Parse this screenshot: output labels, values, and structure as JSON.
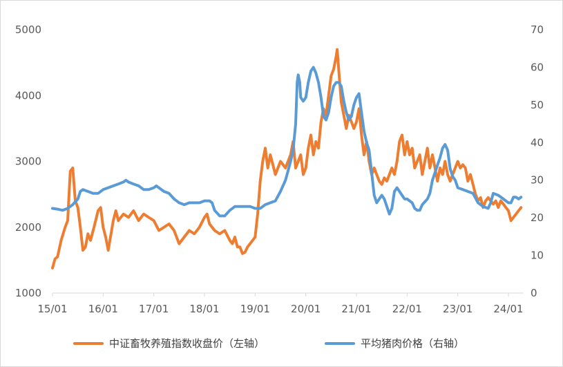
{
  "chart_data": {
    "type": "line",
    "title": "",
    "x_ticks": [
      "15/01",
      "16/01",
      "17/01",
      "18/01",
      "19/01",
      "20/01",
      "21/01",
      "22/01",
      "23/01",
      "24/01"
    ],
    "x_range": [
      2015.0,
      2024.3
    ],
    "y_left": {
      "ticks": [
        "1000",
        "2000",
        "3000",
        "4000",
        "5000"
      ],
      "range": [
        1000,
        5000
      ]
    },
    "y_right": {
      "ticks": [
        "0",
        "10",
        "20",
        "30",
        "40",
        "50",
        "60",
        "70"
      ],
      "range": [
        0,
        70
      ]
    },
    "grid": false,
    "legend_position": "bottom",
    "series": [
      {
        "name": "中证畜牧养殖指数收盘价（左轴）",
        "axis": "left",
        "color": "#ED7D31",
        "points": [
          [
            2015.0,
            1380
          ],
          [
            2015.05,
            1520
          ],
          [
            2015.1,
            1550
          ],
          [
            2015.17,
            1800
          ],
          [
            2015.25,
            2000
          ],
          [
            2015.3,
            2100
          ],
          [
            2015.35,
            2850
          ],
          [
            2015.4,
            2900
          ],
          [
            2015.45,
            2400
          ],
          [
            2015.5,
            2300
          ],
          [
            2015.55,
            2000
          ],
          [
            2015.6,
            1650
          ],
          [
            2015.65,
            1700
          ],
          [
            2015.7,
            1900
          ],
          [
            2015.75,
            1800
          ],
          [
            2015.82,
            2000
          ],
          [
            2015.9,
            2250
          ],
          [
            2015.95,
            2300
          ],
          [
            2016.0,
            2000
          ],
          [
            2016.05,
            1850
          ],
          [
            2016.1,
            1650
          ],
          [
            2016.2,
            2100
          ],
          [
            2016.25,
            2250
          ],
          [
            2016.3,
            2100
          ],
          [
            2016.4,
            2200
          ],
          [
            2016.5,
            2150
          ],
          [
            2016.6,
            2250
          ],
          [
            2016.7,
            2100
          ],
          [
            2016.8,
            2200
          ],
          [
            2016.9,
            2150
          ],
          [
            2017.0,
            2100
          ],
          [
            2017.1,
            1950
          ],
          [
            2017.2,
            2000
          ],
          [
            2017.3,
            2050
          ],
          [
            2017.4,
            1950
          ],
          [
            2017.5,
            1750
          ],
          [
            2017.6,
            1850
          ],
          [
            2017.7,
            1950
          ],
          [
            2017.8,
            1900
          ],
          [
            2017.9,
            2000
          ],
          [
            2018.0,
            2150
          ],
          [
            2018.05,
            2200
          ],
          [
            2018.1,
            2050
          ],
          [
            2018.2,
            1950
          ],
          [
            2018.3,
            1900
          ],
          [
            2018.4,
            1950
          ],
          [
            2018.5,
            1800
          ],
          [
            2018.55,
            1750
          ],
          [
            2018.6,
            1850
          ],
          [
            2018.65,
            1700
          ],
          [
            2018.7,
            1700
          ],
          [
            2018.75,
            1600
          ],
          [
            2018.8,
            1620
          ],
          [
            2018.85,
            1700
          ],
          [
            2018.9,
            1750
          ],
          [
            2018.95,
            1800
          ],
          [
            2019.0,
            1850
          ],
          [
            2019.05,
            2200
          ],
          [
            2019.1,
            2700
          ],
          [
            2019.15,
            3000
          ],
          [
            2019.2,
            3200
          ],
          [
            2019.25,
            2900
          ],
          [
            2019.3,
            3100
          ],
          [
            2019.4,
            2800
          ],
          [
            2019.5,
            3000
          ],
          [
            2019.6,
            2900
          ],
          [
            2019.7,
            3100
          ],
          [
            2019.75,
            3300
          ],
          [
            2019.8,
            2900
          ],
          [
            2019.85,
            3000
          ],
          [
            2019.9,
            3100
          ],
          [
            2019.95,
            2800
          ],
          [
            2020.0,
            2900
          ],
          [
            2020.05,
            3200
          ],
          [
            2020.1,
            3400
          ],
          [
            2020.15,
            3100
          ],
          [
            2020.2,
            3300
          ],
          [
            2020.25,
            3200
          ],
          [
            2020.3,
            3600
          ],
          [
            2020.35,
            3800
          ],
          [
            2020.4,
            3700
          ],
          [
            2020.45,
            4000
          ],
          [
            2020.5,
            4300
          ],
          [
            2020.55,
            4400
          ],
          [
            2020.6,
            4600
          ],
          [
            2020.62,
            4700
          ],
          [
            2020.65,
            4400
          ],
          [
            2020.7,
            3900
          ],
          [
            2020.75,
            3700
          ],
          [
            2020.8,
            3500
          ],
          [
            2020.85,
            3700
          ],
          [
            2020.9,
            3600
          ],
          [
            2020.95,
            3500
          ],
          [
            2021.0,
            3600
          ],
          [
            2021.05,
            3800
          ],
          [
            2021.1,
            3400
          ],
          [
            2021.15,
            3100
          ],
          [
            2021.2,
            3300
          ],
          [
            2021.25,
            3000
          ],
          [
            2021.3,
            2800
          ],
          [
            2021.35,
            2900
          ],
          [
            2021.4,
            2800
          ],
          [
            2021.45,
            2700
          ],
          [
            2021.5,
            2650
          ],
          [
            2021.55,
            2750
          ],
          [
            2021.6,
            2700
          ],
          [
            2021.65,
            2800
          ],
          [
            2021.7,
            2900
          ],
          [
            2021.75,
            2800
          ],
          [
            2021.8,
            3000
          ],
          [
            2021.85,
            3300
          ],
          [
            2021.9,
            3400
          ],
          [
            2021.95,
            3100
          ],
          [
            2022.0,
            3300
          ],
          [
            2022.05,
            3100
          ],
          [
            2022.1,
            3200
          ],
          [
            2022.15,
            2900
          ],
          [
            2022.2,
            3000
          ],
          [
            2022.25,
            3100
          ],
          [
            2022.3,
            2800
          ],
          [
            2022.35,
            3000
          ],
          [
            2022.4,
            3200
          ],
          [
            2022.45,
            2900
          ],
          [
            2022.5,
            3100
          ],
          [
            2022.55,
            2900
          ],
          [
            2022.6,
            2700
          ],
          [
            2022.65,
            2900
          ],
          [
            2022.7,
            2800
          ],
          [
            2022.75,
            3000
          ],
          [
            2022.8,
            2800
          ],
          [
            2022.85,
            2700
          ],
          [
            2022.9,
            2800
          ],
          [
            2022.95,
            2900
          ],
          [
            2023.0,
            3000
          ],
          [
            2023.05,
            2900
          ],
          [
            2023.1,
            2950
          ],
          [
            2023.15,
            2900
          ],
          [
            2023.2,
            2700
          ],
          [
            2023.25,
            2800
          ],
          [
            2023.3,
            2650
          ],
          [
            2023.35,
            2500
          ],
          [
            2023.4,
            2400
          ],
          [
            2023.45,
            2450
          ],
          [
            2023.5,
            2300
          ],
          [
            2023.55,
            2400
          ],
          [
            2023.6,
            2450
          ],
          [
            2023.65,
            2400
          ],
          [
            2023.7,
            2350
          ],
          [
            2023.75,
            2400
          ],
          [
            2023.8,
            2300
          ],
          [
            2023.85,
            2400
          ],
          [
            2023.9,
            2350
          ],
          [
            2023.95,
            2300
          ],
          [
            2024.0,
            2250
          ],
          [
            2024.05,
            2100
          ],
          [
            2024.1,
            2150
          ],
          [
            2024.15,
            2200
          ],
          [
            2024.2,
            2250
          ],
          [
            2024.25,
            2300
          ]
        ]
      },
      {
        "name": "平均猪肉价格（右轴）",
        "axis": "right",
        "color": "#5B9BD5",
        "points": [
          [
            2015.0,
            22.5
          ],
          [
            2015.1,
            22.3
          ],
          [
            2015.2,
            22.0
          ],
          [
            2015.3,
            22.5
          ],
          [
            2015.4,
            23.5
          ],
          [
            2015.5,
            25.0
          ],
          [
            2015.55,
            27.0
          ],
          [
            2015.6,
            27.5
          ],
          [
            2015.7,
            27.0
          ],
          [
            2015.8,
            26.5
          ],
          [
            2015.9,
            26.5
          ],
          [
            2016.0,
            27.5
          ],
          [
            2016.1,
            28.0
          ],
          [
            2016.2,
            28.5
          ],
          [
            2016.3,
            29.0
          ],
          [
            2016.4,
            29.5
          ],
          [
            2016.45,
            30.0
          ],
          [
            2016.5,
            29.5
          ],
          [
            2016.6,
            29.0
          ],
          [
            2016.7,
            28.5
          ],
          [
            2016.8,
            27.5
          ],
          [
            2016.9,
            27.5
          ],
          [
            2017.0,
            28.0
          ],
          [
            2017.05,
            28.5
          ],
          [
            2017.1,
            28.0
          ],
          [
            2017.2,
            27.0
          ],
          [
            2017.3,
            26.5
          ],
          [
            2017.4,
            25.0
          ],
          [
            2017.5,
            24.0
          ],
          [
            2017.6,
            23.5
          ],
          [
            2017.7,
            24.0
          ],
          [
            2017.8,
            24.0
          ],
          [
            2017.9,
            24.0
          ],
          [
            2018.0,
            24.5
          ],
          [
            2018.1,
            24.5
          ],
          [
            2018.15,
            24.0
          ],
          [
            2018.2,
            22.0
          ],
          [
            2018.3,
            20.5
          ],
          [
            2018.4,
            20.5
          ],
          [
            2018.5,
            22.0
          ],
          [
            2018.6,
            23.0
          ],
          [
            2018.7,
            23.0
          ],
          [
            2018.8,
            23.0
          ],
          [
            2018.9,
            23.0
          ],
          [
            2019.0,
            22.5
          ],
          [
            2019.1,
            22.5
          ],
          [
            2019.2,
            23.5
          ],
          [
            2019.3,
            24.0
          ],
          [
            2019.4,
            24.5
          ],
          [
            2019.5,
            27.0
          ],
          [
            2019.6,
            30.0
          ],
          [
            2019.7,
            35.0
          ],
          [
            2019.75,
            38.0
          ],
          [
            2019.8,
            45.0
          ],
          [
            2019.83,
            56.0
          ],
          [
            2019.85,
            58.0
          ],
          [
            2019.88,
            56.0
          ],
          [
            2019.9,
            52.0
          ],
          [
            2019.95,
            51.0
          ],
          [
            2020.0,
            52.0
          ],
          [
            2020.05,
            56.0
          ],
          [
            2020.1,
            59.0
          ],
          [
            2020.15,
            60.0
          ],
          [
            2020.2,
            58.5
          ],
          [
            2020.25,
            56.0
          ],
          [
            2020.3,
            52.0
          ],
          [
            2020.35,
            47.0
          ],
          [
            2020.4,
            46.0
          ],
          [
            2020.45,
            48.0
          ],
          [
            2020.5,
            52.0
          ],
          [
            2020.55,
            55.0
          ],
          [
            2020.6,
            56.0
          ],
          [
            2020.65,
            56.0
          ],
          [
            2020.7,
            55.0
          ],
          [
            2020.75,
            51.0
          ],
          [
            2020.8,
            48.0
          ],
          [
            2020.85,
            46.0
          ],
          [
            2020.9,
            47.0
          ],
          [
            2020.95,
            50.0
          ],
          [
            2021.0,
            52.0
          ],
          [
            2021.05,
            53.0
          ],
          [
            2021.1,
            48.0
          ],
          [
            2021.15,
            43.0
          ],
          [
            2021.2,
            40.0
          ],
          [
            2021.25,
            38.0
          ],
          [
            2021.3,
            32.0
          ],
          [
            2021.35,
            26.0
          ],
          [
            2021.4,
            24.0
          ],
          [
            2021.45,
            25.0
          ],
          [
            2021.5,
            26.0
          ],
          [
            2021.55,
            25.0
          ],
          [
            2021.6,
            23.0
          ],
          [
            2021.65,
            21.0
          ],
          [
            2021.7,
            22.5
          ],
          [
            2021.75,
            27.0
          ],
          [
            2021.8,
            28.0
          ],
          [
            2021.85,
            27.0
          ],
          [
            2021.9,
            26.0
          ],
          [
            2021.95,
            25.0
          ],
          [
            2022.0,
            25.0
          ],
          [
            2022.1,
            24.0
          ],
          [
            2022.15,
            22.5
          ],
          [
            2022.2,
            22.0
          ],
          [
            2022.25,
            22.0
          ],
          [
            2022.3,
            23.5
          ],
          [
            2022.4,
            25.0
          ],
          [
            2022.45,
            26.5
          ],
          [
            2022.5,
            30.0
          ],
          [
            2022.55,
            32.0
          ],
          [
            2022.6,
            34.0
          ],
          [
            2022.65,
            36.0
          ],
          [
            2022.7,
            38.5
          ],
          [
            2022.75,
            39.5
          ],
          [
            2022.8,
            38.0
          ],
          [
            2022.85,
            33.0
          ],
          [
            2022.9,
            31.0
          ],
          [
            2022.95,
            30.0
          ],
          [
            2023.0,
            28.0
          ],
          [
            2023.1,
            27.5
          ],
          [
            2023.2,
            27.0
          ],
          [
            2023.3,
            26.5
          ],
          [
            2023.4,
            24.0
          ],
          [
            2023.5,
            23.0
          ],
          [
            2023.6,
            22.5
          ],
          [
            2023.65,
            24.0
          ],
          [
            2023.7,
            26.5
          ],
          [
            2023.8,
            26.0
          ],
          [
            2023.9,
            25.0
          ],
          [
            2023.95,
            24.5
          ],
          [
            2024.0,
            24.0
          ],
          [
            2024.05,
            24.0
          ],
          [
            2024.1,
            25.5
          ],
          [
            2024.15,
            25.5
          ],
          [
            2024.2,
            25.0
          ],
          [
            2024.25,
            25.5
          ]
        ]
      }
    ]
  }
}
